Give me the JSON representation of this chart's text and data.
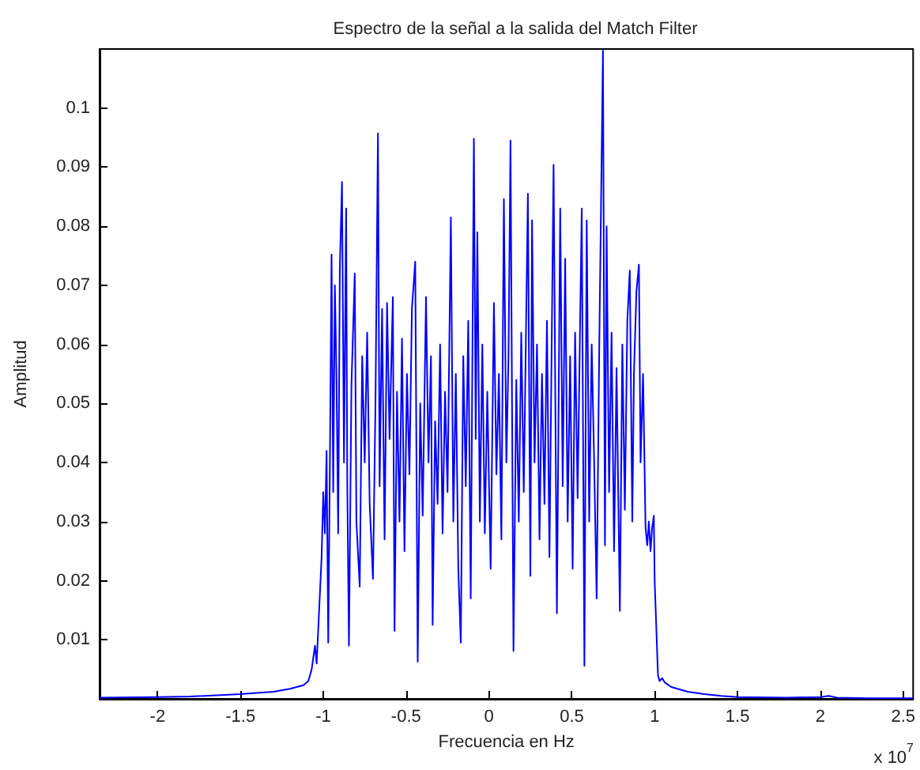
{
  "chart_data": {
    "type": "line",
    "title": "Espectro de la señal a la salida del Match Filter",
    "xlabel": "Frecuencia en Hz",
    "ylabel": "Amplitud",
    "annotations": [
      "x 10$^{7}$"
    ],
    "xlim": [
      -2.35,
      2.56
    ],
    "ylim": [
      0,
      0.11
    ],
    "xticks": [
      -2,
      -1.5,
      -1,
      -0.5,
      0,
      0.5,
      1,
      1.5,
      2,
      2.5
    ],
    "yticks": [
      0.01,
      0.02,
      0.03,
      0.04,
      0.05,
      0.06,
      0.07,
      0.08,
      0.09,
      0.1
    ],
    "marker": "none",
    "line_style": "solid",
    "series": [
      {
        "color": "#0000ff",
        "x": [
          -2.35,
          -2.0,
          -1.8,
          -1.5,
          -1.3,
          -1.2,
          -1.12,
          -1.09,
          -1.07,
          -1.05,
          -1.04,
          -1.03,
          -1.02,
          -1.01,
          -1.0,
          -0.99,
          -0.98,
          -0.97,
          -0.96,
          -0.95,
          -0.94,
          -0.93,
          -0.92,
          -0.91,
          -0.9,
          -0.887,
          -0.875,
          -0.862,
          -0.855,
          -0.845,
          -0.83,
          -0.81,
          -0.8,
          -0.78,
          -0.765,
          -0.75,
          -0.735,
          -0.72,
          -0.7,
          -0.685,
          -0.67,
          -0.66,
          -0.645,
          -0.63,
          -0.615,
          -0.6,
          -0.58,
          -0.57,
          -0.555,
          -0.54,
          -0.525,
          -0.51,
          -0.495,
          -0.48,
          -0.465,
          -0.445,
          -0.43,
          -0.415,
          -0.4,
          -0.38,
          -0.365,
          -0.35,
          -0.34,
          -0.325,
          -0.31,
          -0.295,
          -0.28,
          -0.265,
          -0.25,
          -0.23,
          -0.215,
          -0.2,
          -0.185,
          -0.17,
          -0.155,
          -0.14,
          -0.125,
          -0.11,
          -0.091,
          -0.08,
          -0.07,
          -0.055,
          -0.04,
          -0.025,
          -0.01,
          0.01,
          0.03,
          0.045,
          0.06,
          0.075,
          0.09,
          0.105,
          0.118,
          0.13,
          0.148,
          0.165,
          0.18,
          0.195,
          0.21,
          0.235,
          0.25,
          0.26,
          0.275,
          0.29,
          0.305,
          0.32,
          0.335,
          0.35,
          0.365,
          0.39,
          0.41,
          0.43,
          0.445,
          0.46,
          0.475,
          0.49,
          0.505,
          0.52,
          0.535,
          0.56,
          0.576,
          0.59,
          0.605,
          0.62,
          0.635,
          0.65,
          0.665,
          0.688,
          0.7,
          0.71,
          0.725,
          0.74,
          0.755,
          0.77,
          0.79,
          0.805,
          0.82,
          0.835,
          0.85,
          0.865,
          0.875,
          0.89,
          0.905,
          0.915,
          0.93,
          0.945,
          0.955,
          0.965,
          0.975,
          0.985,
          0.995,
          1.0,
          1.01,
          1.02,
          1.03,
          1.045,
          1.06,
          1.1,
          1.2,
          1.3,
          1.4,
          1.5,
          1.8,
          2.0,
          2.05,
          2.1,
          2.3,
          2.56
        ],
        "values": [
          0.0002,
          0.0003,
          0.0004,
          0.0008,
          0.0012,
          0.0017,
          0.0023,
          0.003,
          0.005,
          0.009,
          0.006,
          0.012,
          0.018,
          0.024,
          0.035,
          0.028,
          0.042,
          0.0095,
          0.04,
          0.0752,
          0.035,
          0.07,
          0.054,
          0.028,
          0.073,
          0.0875,
          0.04,
          0.083,
          0.036,
          0.009,
          0.053,
          0.072,
          0.03,
          0.019,
          0.058,
          0.04,
          0.062,
          0.033,
          0.0203,
          0.05,
          0.0957,
          0.036,
          0.066,
          0.027,
          0.067,
          0.044,
          0.068,
          0.0115,
          0.052,
          0.03,
          0.061,
          0.025,
          0.055,
          0.038,
          0.066,
          0.074,
          0.0063,
          0.05,
          0.031,
          0.068,
          0.04,
          0.058,
          0.0125,
          0.047,
          0.033,
          0.06,
          0.028,
          0.052,
          0.035,
          0.0815,
          0.03,
          0.055,
          0.022,
          0.0095,
          0.058,
          0.036,
          0.064,
          0.017,
          0.0948,
          0.044,
          0.079,
          0.03,
          0.06,
          0.028,
          0.052,
          0.022,
          0.067,
          0.038,
          0.055,
          0.027,
          0.0846,
          0.04,
          0.058,
          0.0945,
          0.0081,
          0.054,
          0.03,
          0.062,
          0.035,
          0.0855,
          0.0208,
          0.081,
          0.04,
          0.06,
          0.027,
          0.055,
          0.033,
          0.064,
          0.024,
          0.0904,
          0.0145,
          0.083,
          0.036,
          0.0745,
          0.03,
          0.058,
          0.022,
          0.062,
          0.034,
          0.083,
          0.0056,
          0.081,
          0.03,
          0.06,
          0.04,
          0.017,
          0.058,
          0.1098,
          0.026,
          0.08,
          0.035,
          0.062,
          0.025,
          0.056,
          0.0149,
          0.06,
          0.032,
          0.064,
          0.0725,
          0.03,
          0.055,
          0.069,
          0.0735,
          0.04,
          0.055,
          0.029,
          0.026,
          0.03,
          0.025,
          0.029,
          0.031,
          0.02,
          0.012,
          0.004,
          0.003,
          0.0035,
          0.0028,
          0.002,
          0.0012,
          0.0008,
          0.0005,
          0.0003,
          0.0002,
          0.0003,
          0.0005,
          0.0002,
          0.0001,
          0.0001
        ]
      }
    ]
  }
}
